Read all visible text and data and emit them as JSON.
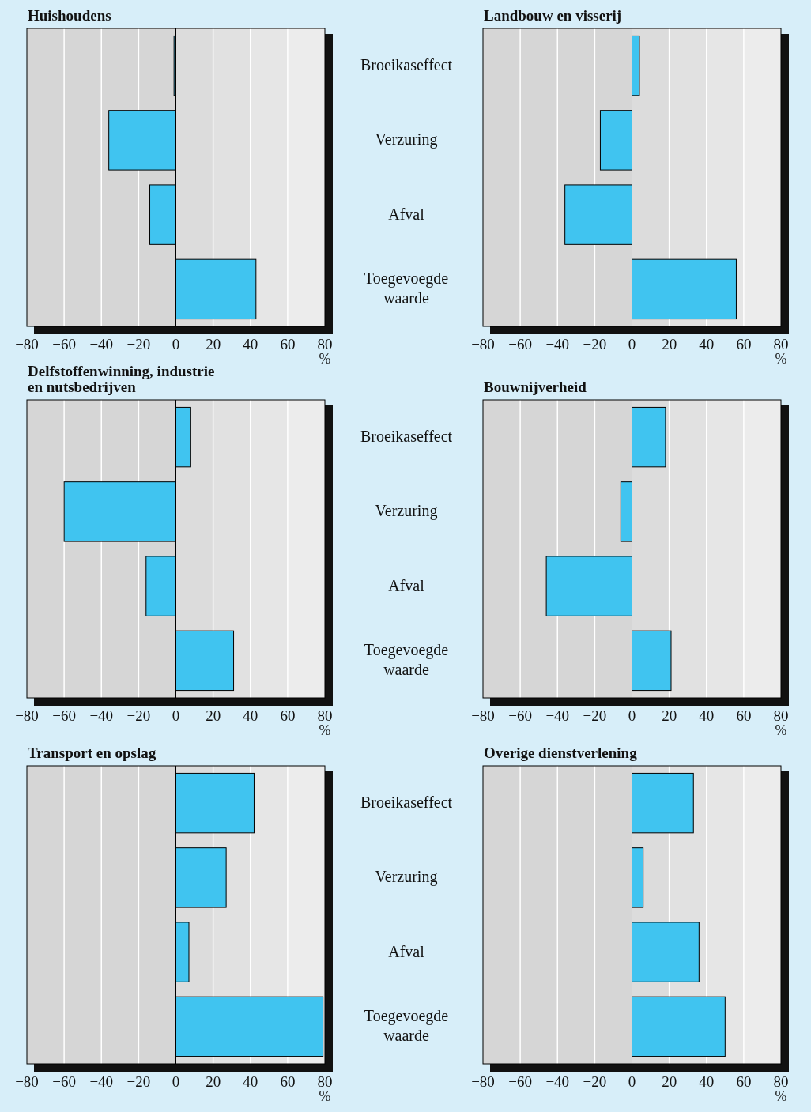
{
  "chart_data": [
    {
      "type": "bar",
      "orientation": "horizontal",
      "title": "Huishoudens",
      "xlabel": "%",
      "categories": [
        "Broeikaseffect",
        "Verzuring",
        "Afval",
        "Toegevoegde waarde"
      ],
      "values": [
        -1,
        -36,
        -14,
        43
      ],
      "color": "#40c4f0",
      "xlim": [
        -80,
        80
      ],
      "xticks": [
        -80,
        -60,
        -40,
        -20,
        0,
        20,
        40,
        60,
        80
      ],
      "grid": "x"
    },
    {
      "type": "bar",
      "orientation": "horizontal",
      "title": "Landbouw en visserij",
      "xlabel": "%",
      "categories": [
        null,
        null,
        null,
        null
      ],
      "values": [
        4,
        -17,
        -36,
        56
      ],
      "color": "#40c4f0",
      "xlim": [
        -80,
        80
      ],
      "xticks": [
        -80,
        -60,
        -40,
        -20,
        0,
        20,
        40,
        60,
        80
      ],
      "grid": "x"
    },
    {
      "type": "bar",
      "orientation": "horizontal",
      "title": "Delfstoffenwinning, industrie\nen nutsbedrijven",
      "xlabel": "%",
      "categories": [
        "Broeikaseffect",
        "Verzuring",
        "Afval",
        "Toegevoegde waarde"
      ],
      "values": [
        8,
        -60,
        -16,
        31
      ],
      "color": "#40c4f0",
      "xlim": [
        -80,
        80
      ],
      "xticks": [
        -80,
        -60,
        -40,
        -20,
        0,
        20,
        40,
        60,
        80
      ],
      "grid": "x"
    },
    {
      "type": "bar",
      "orientation": "horizontal",
      "title": "Bouwnijverheid",
      "xlabel": "%",
      "categories": [
        null,
        null,
        null,
        null
      ],
      "values": [
        18,
        -6,
        -46,
        21
      ],
      "color": "#40c4f0",
      "xlim": [
        -80,
        80
      ],
      "xticks": [
        -80,
        -60,
        -40,
        -20,
        0,
        20,
        40,
        60,
        80
      ],
      "grid": "x"
    },
    {
      "type": "bar",
      "orientation": "horizontal",
      "title": "Transport en opslag",
      "xlabel": "%",
      "categories": [
        "Broeikaseffect",
        "Verzuring",
        "Afval",
        "Toegevoegde waarde"
      ],
      "values": [
        42,
        27,
        7,
        79
      ],
      "color": "#40c4f0",
      "xlim": [
        -80,
        80
      ],
      "xticks": [
        -80,
        -60,
        -40,
        -20,
        0,
        20,
        40,
        60,
        80
      ],
      "grid": "x"
    },
    {
      "type": "bar",
      "orientation": "horizontal",
      "title": "Overige dienstverlening",
      "xlabel": "%",
      "categories": [
        null,
        null,
        null,
        null
      ],
      "values": [
        33,
        6,
        36,
        50
      ],
      "color": "#40c4f0",
      "xlim": [
        -80,
        80
      ],
      "xticks": [
        -80,
        -60,
        -40,
        -20,
        0,
        20,
        40,
        60,
        80
      ],
      "grid": "x"
    }
  ]
}
